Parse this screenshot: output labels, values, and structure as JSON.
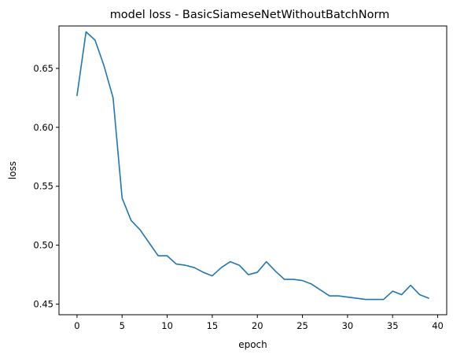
{
  "chart_data": {
    "type": "line",
    "title": "model loss - BasicSiameseNetWithoutBatchNorm",
    "xlabel": "epoch",
    "ylabel": "loss",
    "xlim": [
      -2,
      41
    ],
    "ylim": [
      0.441,
      0.686
    ],
    "x_ticks": [
      0,
      5,
      10,
      15,
      20,
      25,
      30,
      35,
      40
    ],
    "y_ticks": [
      0.45,
      0.5,
      0.55,
      0.6,
      0.65
    ],
    "grid": false,
    "line_color": "#1f77b4",
    "series": [
      {
        "x": [
          0,
          1,
          2,
          3,
          4,
          5,
          6,
          7,
          8,
          9,
          10,
          11,
          12,
          13,
          14,
          15,
          16,
          17,
          18,
          19,
          20,
          21,
          22,
          23,
          24,
          25,
          26,
          27,
          28,
          29,
          30,
          31,
          32,
          33,
          34,
          35,
          36,
          37,
          38,
          39
        ],
        "values": [
          0.627,
          0.681,
          0.674,
          0.652,
          0.625,
          0.54,
          0.521,
          0.513,
          0.502,
          0.491,
          0.491,
          0.484,
          0.483,
          0.481,
          0.477,
          0.474,
          0.481,
          0.486,
          0.483,
          0.475,
          0.477,
          0.486,
          0.478,
          0.471,
          0.471,
          0.47,
          0.467,
          0.462,
          0.457,
          0.457,
          0.456,
          0.455,
          0.454,
          0.454,
          0.454,
          0.461,
          0.458,
          0.466,
          0.458,
          0.455
        ]
      }
    ]
  }
}
